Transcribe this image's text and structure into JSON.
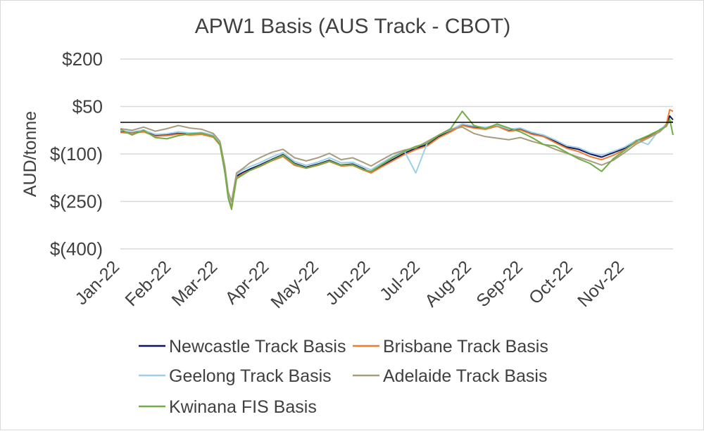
{
  "chart_data": {
    "type": "line",
    "title": "APW1 Basis (AUS Track - CBOT)",
    "ylabel": "AUD/tonne",
    "xlabel": "",
    "ylim": [
      -400,
      200
    ],
    "yticks": [
      200,
      50,
      -100,
      -250,
      -400
    ],
    "ytick_labels": [
      "$200",
      "$50",
      "$(100)",
      "$(250)",
      "$(400)"
    ],
    "x_start": "2022-01-01",
    "x_end": "2022-11-30",
    "xticks": [
      "2022-01-01",
      "2022-02-01",
      "2022-03-01",
      "2022-04-01",
      "2022-05-01",
      "2022-06-01",
      "2022-07-01",
      "2022-08-01",
      "2022-09-01",
      "2022-10-01",
      "2022-11-01"
    ],
    "xtick_labels": [
      "Jan-22",
      "Feb-22",
      "Mar-22",
      "Apr-22",
      "May-22",
      "Jun-22",
      "Jul-22",
      "Aug-22",
      "Sep-22",
      "Oct-22",
      "Nov-22"
    ],
    "grid": "horizontal",
    "reference_line": 0,
    "legend_position": "bottom",
    "series": [
      {
        "name": "Newcastle Track Basis",
        "color": "#0b1464",
        "x": [
          "2022-01-01",
          "2022-01-08",
          "2022-01-15",
          "2022-01-22",
          "2022-01-29",
          "2022-02-05",
          "2022-02-12",
          "2022-02-19",
          "2022-02-26",
          "2022-03-02",
          "2022-03-05",
          "2022-03-07",
          "2022-03-09",
          "2022-03-12",
          "2022-03-16",
          "2022-03-20",
          "2022-03-26",
          "2022-04-02",
          "2022-04-09",
          "2022-04-16",
          "2022-04-23",
          "2022-04-30",
          "2022-05-07",
          "2022-05-14",
          "2022-05-21",
          "2022-05-28",
          "2022-06-01",
          "2022-06-07",
          "2022-06-14",
          "2022-06-21",
          "2022-06-28",
          "2022-07-05",
          "2022-07-12",
          "2022-07-19",
          "2022-07-26",
          "2022-08-02",
          "2022-08-09",
          "2022-08-16",
          "2022-08-23",
          "2022-08-30",
          "2022-09-06",
          "2022-09-13",
          "2022-09-20",
          "2022-09-27",
          "2022-10-04",
          "2022-10-11",
          "2022-10-18",
          "2022-10-25",
          "2022-11-01",
          "2022-11-08",
          "2022-11-15",
          "2022-11-22",
          "2022-11-26",
          "2022-11-28",
          "2022-11-30"
        ],
        "y": [
          -30,
          -33,
          -28,
          -42,
          -40,
          -35,
          -38,
          -36,
          -45,
          -68,
          -150,
          -230,
          -260,
          -170,
          -158,
          -148,
          -135,
          -118,
          -102,
          -130,
          -142,
          -132,
          -120,
          -135,
          -132,
          -148,
          -158,
          -140,
          -118,
          -98,
          -82,
          -70,
          -45,
          -28,
          -8,
          -15,
          -20,
          -10,
          -26,
          -22,
          -35,
          -42,
          -60,
          -78,
          -85,
          -100,
          -110,
          -96,
          -82,
          -60,
          -45,
          -25,
          -12,
          20,
          8
        ]
      },
      {
        "name": "Brisbane Track Basis",
        "color": "#ed7d31",
        "x": [
          "2022-01-01",
          "2022-01-08",
          "2022-01-15",
          "2022-01-22",
          "2022-01-29",
          "2022-02-05",
          "2022-02-12",
          "2022-02-19",
          "2022-02-26",
          "2022-03-02",
          "2022-03-05",
          "2022-03-07",
          "2022-03-09",
          "2022-03-12",
          "2022-03-16",
          "2022-03-20",
          "2022-03-26",
          "2022-04-02",
          "2022-04-09",
          "2022-04-16",
          "2022-04-23",
          "2022-04-30",
          "2022-05-07",
          "2022-05-14",
          "2022-05-21",
          "2022-05-28",
          "2022-06-01",
          "2022-06-07",
          "2022-06-14",
          "2022-06-21",
          "2022-06-28",
          "2022-07-05",
          "2022-07-12",
          "2022-07-19",
          "2022-07-26",
          "2022-08-02",
          "2022-08-09",
          "2022-08-16",
          "2022-08-23",
          "2022-08-30",
          "2022-09-06",
          "2022-09-13",
          "2022-09-20",
          "2022-09-27",
          "2022-10-04",
          "2022-10-11",
          "2022-10-18",
          "2022-10-25",
          "2022-11-01",
          "2022-11-08",
          "2022-11-15",
          "2022-11-22",
          "2022-11-26",
          "2022-11-28",
          "2022-11-30"
        ],
        "y": [
          -32,
          -35,
          -30,
          -44,
          -42,
          -37,
          -40,
          -38,
          -47,
          -72,
          -155,
          -235,
          -268,
          -175,
          -162,
          -152,
          -140,
          -122,
          -108,
          -136,
          -145,
          -136,
          -124,
          -138,
          -136,
          -152,
          -160,
          -142,
          -122,
          -102,
          -86,
          -74,
          -48,
          -30,
          -10,
          -18,
          -22,
          -12,
          -28,
          -24,
          -38,
          -45,
          -64,
          -82,
          -92,
          -108,
          -118,
          -104,
          -86,
          -62,
          -48,
          -28,
          -5,
          40,
          35
        ]
      },
      {
        "name": "Geelong Track Basis",
        "color": "#9dd0e6",
        "x": [
          "2022-01-01",
          "2022-01-08",
          "2022-01-15",
          "2022-01-22",
          "2022-01-29",
          "2022-02-05",
          "2022-02-12",
          "2022-02-19",
          "2022-02-26",
          "2022-03-02",
          "2022-03-05",
          "2022-03-07",
          "2022-03-09",
          "2022-03-12",
          "2022-03-16",
          "2022-03-20",
          "2022-03-26",
          "2022-04-02",
          "2022-04-09",
          "2022-04-16",
          "2022-04-23",
          "2022-04-30",
          "2022-05-07",
          "2022-05-14",
          "2022-05-21",
          "2022-05-28",
          "2022-06-01",
          "2022-06-07",
          "2022-06-14",
          "2022-06-21",
          "2022-06-28",
          "2022-07-05",
          "2022-07-12",
          "2022-07-19",
          "2022-07-26",
          "2022-08-02",
          "2022-08-09",
          "2022-08-16",
          "2022-08-23",
          "2022-08-30",
          "2022-09-06",
          "2022-09-13",
          "2022-09-20",
          "2022-09-27",
          "2022-10-04",
          "2022-10-11",
          "2022-10-18",
          "2022-10-25",
          "2022-11-01",
          "2022-11-08",
          "2022-11-15",
          "2022-11-22",
          "2022-11-26",
          "2022-11-28",
          "2022-11-30"
        ],
        "y": [
          -26,
          -30,
          -24,
          -38,
          -36,
          -30,
          -34,
          -32,
          -40,
          -64,
          -145,
          -225,
          -255,
          -165,
          -150,
          -140,
          -128,
          -110,
          -96,
          -124,
          -136,
          -126,
          -112,
          -128,
          -126,
          -142,
          -150,
          -130,
          -108,
          -90,
          -160,
          -64,
          -40,
          -24,
          -5,
          -12,
          -16,
          -8,
          -22,
          -18,
          -32,
          -40,
          -56,
          -74,
          -80,
          -96,
          -104,
          -92,
          -78,
          -56,
          -70,
          -22,
          -10,
          5,
          0
        ]
      },
      {
        "name": "Adelaide Track Basis",
        "color": "#a89c7f",
        "x": [
          "2022-01-01",
          "2022-01-08",
          "2022-01-15",
          "2022-01-22",
          "2022-01-29",
          "2022-02-05",
          "2022-02-12",
          "2022-02-19",
          "2022-02-26",
          "2022-03-02",
          "2022-03-05",
          "2022-03-07",
          "2022-03-09",
          "2022-03-12",
          "2022-03-16",
          "2022-03-20",
          "2022-03-26",
          "2022-04-02",
          "2022-04-09",
          "2022-04-16",
          "2022-04-23",
          "2022-04-30",
          "2022-05-07",
          "2022-05-14",
          "2022-05-21",
          "2022-05-28",
          "2022-06-01",
          "2022-06-07",
          "2022-06-14",
          "2022-06-21",
          "2022-06-28",
          "2022-07-05",
          "2022-07-12",
          "2022-07-19",
          "2022-07-26",
          "2022-08-02",
          "2022-08-09",
          "2022-08-16",
          "2022-08-23",
          "2022-08-30",
          "2022-09-06",
          "2022-09-13",
          "2022-09-20",
          "2022-09-27",
          "2022-10-04",
          "2022-10-11",
          "2022-10-18",
          "2022-10-25",
          "2022-11-01",
          "2022-11-08",
          "2022-11-15",
          "2022-11-22",
          "2022-11-26",
          "2022-11-28",
          "2022-11-30"
        ],
        "y": [
          -20,
          -25,
          -15,
          -28,
          -20,
          -10,
          -18,
          -22,
          -35,
          -60,
          -140,
          -220,
          -250,
          -160,
          -145,
          -128,
          -112,
          -95,
          -85,
          -112,
          -122,
          -112,
          -98,
          -118,
          -112,
          -128,
          -138,
          -120,
          -100,
          -88,
          -80,
          -60,
          -40,
          -22,
          -15,
          -35,
          -45,
          -50,
          -55,
          -48,
          -60,
          -70,
          -85,
          -98,
          -110,
          -122,
          -135,
          -120,
          -95,
          -68,
          -50,
          -30,
          -10,
          5,
          0
        ]
      },
      {
        "name": "Kwinana FIS Basis",
        "color": "#70ad47",
        "x": [
          "2022-01-01",
          "2022-01-08",
          "2022-01-15",
          "2022-01-22",
          "2022-01-29",
          "2022-02-05",
          "2022-02-12",
          "2022-02-19",
          "2022-02-26",
          "2022-03-02",
          "2022-03-05",
          "2022-03-07",
          "2022-03-09",
          "2022-03-12",
          "2022-03-16",
          "2022-03-20",
          "2022-03-26",
          "2022-04-02",
          "2022-04-09",
          "2022-04-16",
          "2022-04-23",
          "2022-04-30",
          "2022-05-07",
          "2022-05-14",
          "2022-05-21",
          "2022-05-28",
          "2022-06-01",
          "2022-06-07",
          "2022-06-14",
          "2022-06-21",
          "2022-06-28",
          "2022-07-05",
          "2022-07-12",
          "2022-07-19",
          "2022-07-26",
          "2022-08-02",
          "2022-08-09",
          "2022-08-16",
          "2022-08-23",
          "2022-08-30",
          "2022-09-06",
          "2022-09-13",
          "2022-09-20",
          "2022-09-27",
          "2022-10-04",
          "2022-10-11",
          "2022-10-18",
          "2022-10-25",
          "2022-11-01",
          "2022-11-08",
          "2022-11-15",
          "2022-11-22",
          "2022-11-26",
          "2022-11-28",
          "2022-11-30"
        ],
        "y": [
          -22,
          -40,
          -25,
          -48,
          -52,
          -42,
          -36,
          -34,
          -44,
          -70,
          -160,
          -240,
          -275,
          -178,
          -165,
          -152,
          -138,
          -120,
          -104,
          -132,
          -144,
          -134,
          -122,
          -136,
          -134,
          -150,
          -155,
          -135,
          -112,
          -92,
          -76,
          -66,
          -40,
          -20,
          35,
          -10,
          -20,
          -5,
          -18,
          -30,
          -48,
          -70,
          -75,
          -95,
          -115,
          -130,
          -155,
          -115,
          -88,
          -58,
          -42,
          -24,
          -12,
          10,
          -40
        ]
      }
    ]
  }
}
